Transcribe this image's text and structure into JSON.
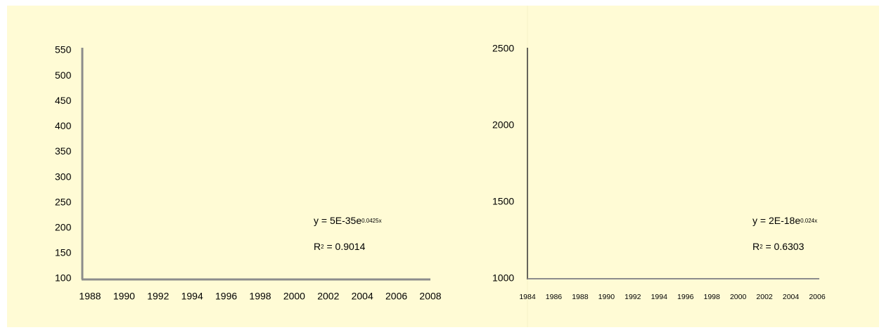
{
  "chart_data": [
    {
      "type": "scatter",
      "xlim": [
        1988,
        2008
      ],
      "xticks": [
        1988,
        1990,
        1992,
        1994,
        1996,
        1998,
        2000,
        2002,
        2004,
        2006,
        2008
      ],
      "ylim": [
        100,
        550
      ],
      "yticks": [
        100,
        150,
        200,
        250,
        300,
        350,
        400,
        450,
        500,
        550
      ],
      "annotations": [
        {
          "text": "y = 5E-35e",
          "superscript": "0.0425x"
        },
        {
          "text": "R",
          "superscript": "2",
          "rest": " = 0.9014"
        }
      ]
    },
    {
      "type": "scatter",
      "xlim": [
        1984,
        2006
      ],
      "xticks": [
        1984,
        1986,
        1988,
        1990,
        1992,
        1994,
        1996,
        1998,
        2000,
        2002,
        2004,
        2006
      ],
      "ylim": [
        1000,
        2500
      ],
      "yticks": [
        1000,
        1500,
        2000,
        2500
      ],
      "annotations": [
        {
          "text": "y = 2E-18e",
          "superscript": "0.024x"
        },
        {
          "text": "R",
          "superscript": "2",
          "rest": " = 0.6303"
        }
      ]
    }
  ]
}
